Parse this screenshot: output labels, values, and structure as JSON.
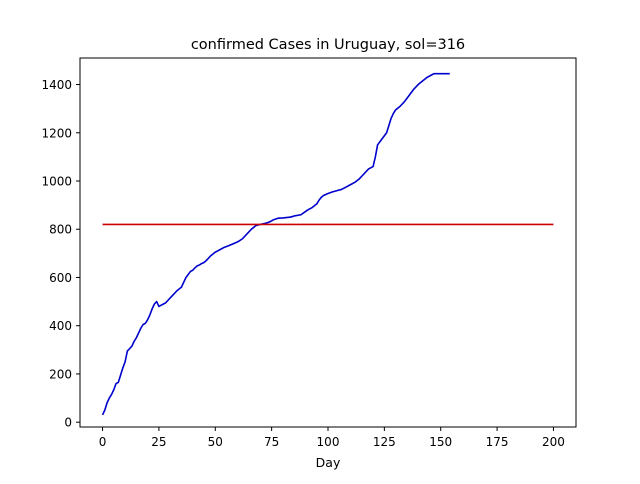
{
  "chart_data": {
    "type": "line",
    "title": "confirmed Cases in Uruguay, sol=316",
    "xlabel": "Day",
    "ylabel": "",
    "xlim": [
      -10,
      210
    ],
    "ylim": [
      -20,
      1510
    ],
    "xticks": [
      0,
      25,
      50,
      75,
      100,
      125,
      150,
      175,
      200
    ],
    "yticks": [
      0,
      200,
      400,
      600,
      800,
      1000,
      1200,
      1400
    ],
    "grid": false,
    "legend": "none",
    "series": [
      {
        "color": "#0000cc",
        "x": [
          0,
          1,
          2,
          3,
          4,
          5,
          6,
          7,
          8,
          9,
          10,
          11,
          12,
          13,
          14,
          15,
          16,
          17,
          18,
          19,
          20,
          21,
          22,
          23,
          24,
          25,
          26,
          27,
          28,
          29,
          30,
          31,
          32,
          33,
          35,
          37,
          39,
          40,
          41,
          42,
          43,
          44,
          45,
          46,
          48,
          50,
          52,
          54,
          56,
          58,
          60,
          62,
          64,
          66,
          68,
          70,
          72,
          74,
          75,
          76,
          78,
          80,
          81,
          82,
          83,
          84,
          85,
          88,
          91,
          93,
          95,
          96,
          97,
          98,
          100,
          102,
          104,
          106,
          108,
          110,
          112,
          114,
          116,
          118,
          120,
          121,
          122,
          124,
          126,
          127,
          128,
          129,
          130,
          132,
          134,
          136,
          138,
          140,
          142,
          144,
          146,
          147,
          148,
          150,
          152,
          153,
          154
        ],
        "values": [
          30,
          50,
          80,
          100,
          115,
          135,
          160,
          165,
          195,
          225,
          250,
          295,
          305,
          315,
          335,
          350,
          370,
          390,
          405,
          410,
          425,
          445,
          470,
          490,
          500,
          480,
          485,
          490,
          495,
          505,
          515,
          525,
          535,
          545,
          560,
          600,
          625,
          630,
          640,
          648,
          652,
          658,
          662,
          670,
          690,
          705,
          715,
          725,
          732,
          740,
          748,
          760,
          780,
          800,
          815,
          820,
          824,
          830,
          835,
          840,
          846,
          847,
          848,
          849,
          850,
          852,
          855,
          860,
          880,
          890,
          905,
          920,
          932,
          940,
          948,
          955,
          960,
          965,
          975,
          985,
          995,
          1010,
          1030,
          1050,
          1060,
          1100,
          1150,
          1175,
          1200,
          1230,
          1260,
          1280,
          1295,
          1310,
          1330,
          1355,
          1380,
          1400,
          1415,
          1430,
          1440,
          1445,
          1445,
          1445,
          1445,
          1445,
          1445
        ]
      },
      {
        "color": "#cc0000",
        "x": [
          0,
          200
        ],
        "values": [
          820,
          820
        ]
      }
    ]
  }
}
